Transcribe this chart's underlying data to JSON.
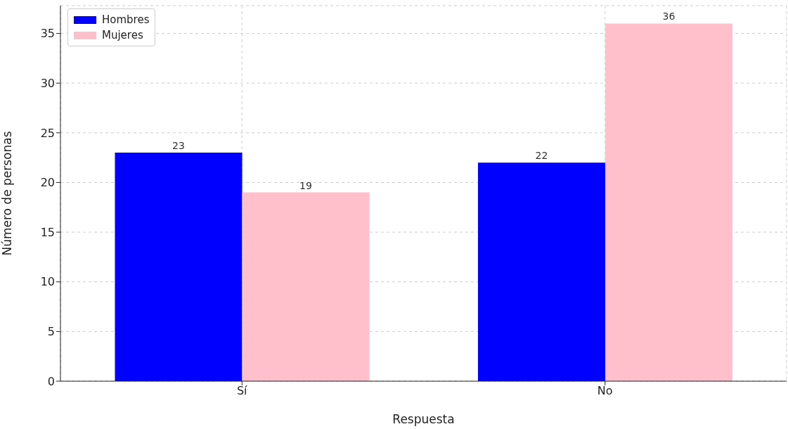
{
  "chart_data": {
    "type": "bar",
    "xlabel": "Respuesta",
    "ylabel": "Número de personas",
    "categories": [
      "Sí",
      "No"
    ],
    "series": [
      {
        "name": "Hombres",
        "color": "#0000ff",
        "values": [
          23,
          22
        ]
      },
      {
        "name": "Mujeres",
        "color": "#ffc0cb",
        "values": [
          19,
          36
        ]
      }
    ],
    "ylim": [
      0,
      37.8
    ],
    "yticks": [
      0,
      5,
      10,
      15,
      20,
      25,
      30,
      35
    ],
    "grid": true,
    "legend": "top left",
    "data_labels": true
  }
}
